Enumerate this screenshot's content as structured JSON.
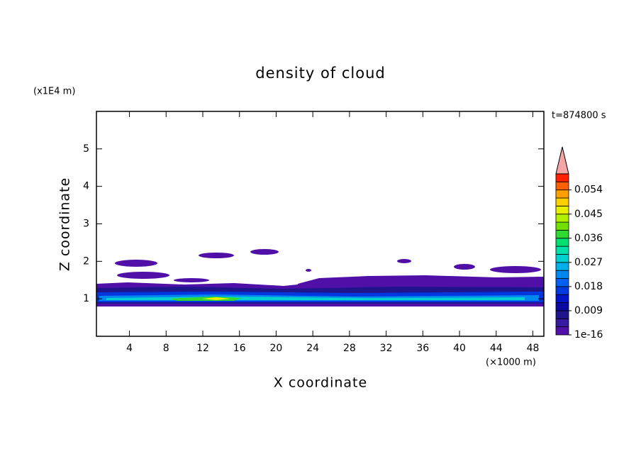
{
  "chart_data": {
    "type": "contour",
    "title": "density of cloud",
    "x_label": "X coordinate",
    "y_label": "Z coordinate",
    "x_unit": "(×1000 m)",
    "y_unit": "(x1E4 m)",
    "time_label": "t=874800 s",
    "xlim": [
      0.4,
      49.2
    ],
    "ylim": [
      0,
      6
    ],
    "xticks": [
      4,
      8,
      12,
      16,
      20,
      24,
      28,
      32,
      36,
      40,
      44,
      48
    ],
    "yticks": [
      1,
      2,
      3,
      4,
      5
    ],
    "colorbar": {
      "clim": [
        1e-16,
        0.06
      ],
      "ticks": [
        1e-16,
        0.009,
        0.018,
        0.027,
        0.036,
        0.045,
        0.054
      ],
      "colors": [
        "#5010a8",
        "#3818a0",
        "#20148c",
        "#0a0aa0",
        "#0014c8",
        "#0038e0",
        "#0060f0",
        "#0088f0",
        "#00b0e8",
        "#00d0d0",
        "#00e0a8",
        "#00e070",
        "#30d830",
        "#70e000",
        "#b0f000",
        "#e8f000",
        "#ffd000",
        "#ffa000",
        "#ff6000",
        "#ff2000"
      ],
      "extend_color": "#f5a5a5"
    }
  }
}
